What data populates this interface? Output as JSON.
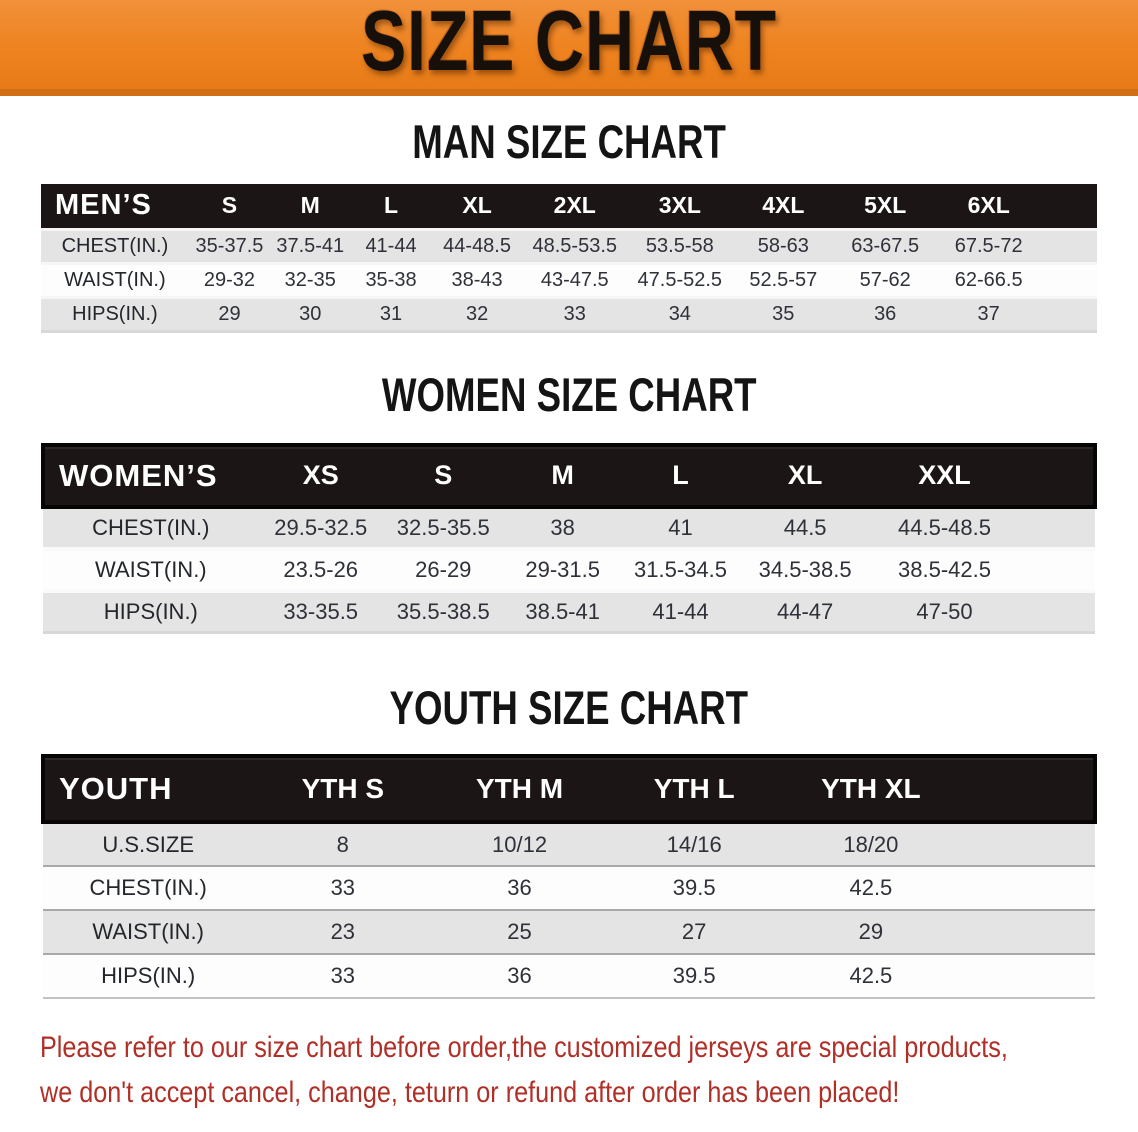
{
  "banner": {
    "title": "SIZE CHART"
  },
  "colors": {
    "banner_orange": "#EE8320",
    "banner_orange_light": "#F1913A",
    "banner_orange_dark": "#D06F15",
    "header_black": "#1B1615",
    "row_gray": "#E4E4E5",
    "note_red": "#B02F27"
  },
  "sections": [
    {
      "id": "men",
      "title": "MAN SIZE CHART",
      "header_label": "MEN’S",
      "columns": [
        "S",
        "M",
        "L",
        "XL",
        "2XL",
        "3XL",
        "4XL",
        "5XL",
        "6XL"
      ],
      "rows": [
        {
          "label": "CHEST(IN.)",
          "values": [
            "35-37.5",
            "37.5-41",
            "41-44",
            "44-48.5",
            "48.5-53.5",
            "53.5-58",
            "58-63",
            "63-67.5",
            "67.5-72"
          ]
        },
        {
          "label": "WAIST(IN.)",
          "values": [
            "29-32",
            "32-35",
            "35-38",
            "38-43",
            "43-47.5",
            "47.5-52.5",
            "52.5-57",
            "57-62",
            "62-66.5"
          ]
        },
        {
          "label": "HIPS(IN.)",
          "values": [
            "29",
            "30",
            "31",
            "32",
            "33",
            "34",
            "35",
            "36",
            "37"
          ]
        }
      ]
    },
    {
      "id": "women",
      "title": "WOMEN SIZE CHART",
      "header_label": "WOMEN’S",
      "columns": [
        "XS",
        "S",
        "M",
        "L",
        "XL",
        "XXL"
      ],
      "rows": [
        {
          "label": "CHEST(IN.)",
          "values": [
            "29.5-32.5",
            "32.5-35.5",
            "38",
            "41",
            "44.5",
            "44.5-48.5"
          ]
        },
        {
          "label": "WAIST(IN.)",
          "values": [
            "23.5-26",
            "26-29",
            "29-31.5",
            "31.5-34.5",
            "34.5-38.5",
            "38.5-42.5"
          ]
        },
        {
          "label": "HIPS(IN.)",
          "values": [
            "33-35.5",
            "35.5-38.5",
            "38.5-41",
            "41-44",
            "44-47",
            "47-50"
          ]
        }
      ]
    },
    {
      "id": "youth",
      "title": "YOUTH SIZE CHART",
      "header_label": "YOUTH",
      "columns": [
        "YTH S",
        "YTH M",
        "YTH L",
        "YTH XL"
      ],
      "rows": [
        {
          "label": "U.S.SIZE",
          "values": [
            "8",
            "10/12",
            "14/16",
            "18/20"
          ]
        },
        {
          "label": "CHEST(IN.)",
          "values": [
            "33",
            "36",
            "39.5",
            "42.5"
          ]
        },
        {
          "label": "WAIST(IN.)",
          "values": [
            "23",
            "25",
            "27",
            "29"
          ]
        },
        {
          "label": "HIPS(IN.)",
          "values": [
            "33",
            "36",
            "39.5",
            "42.5"
          ]
        }
      ]
    }
  ],
  "footer": {
    "line1": "Please refer to our size chart before order,the customized jerseys are special products,",
    "line2": "we don't accept cancel, change, teturn or refund after order has been placed!"
  }
}
